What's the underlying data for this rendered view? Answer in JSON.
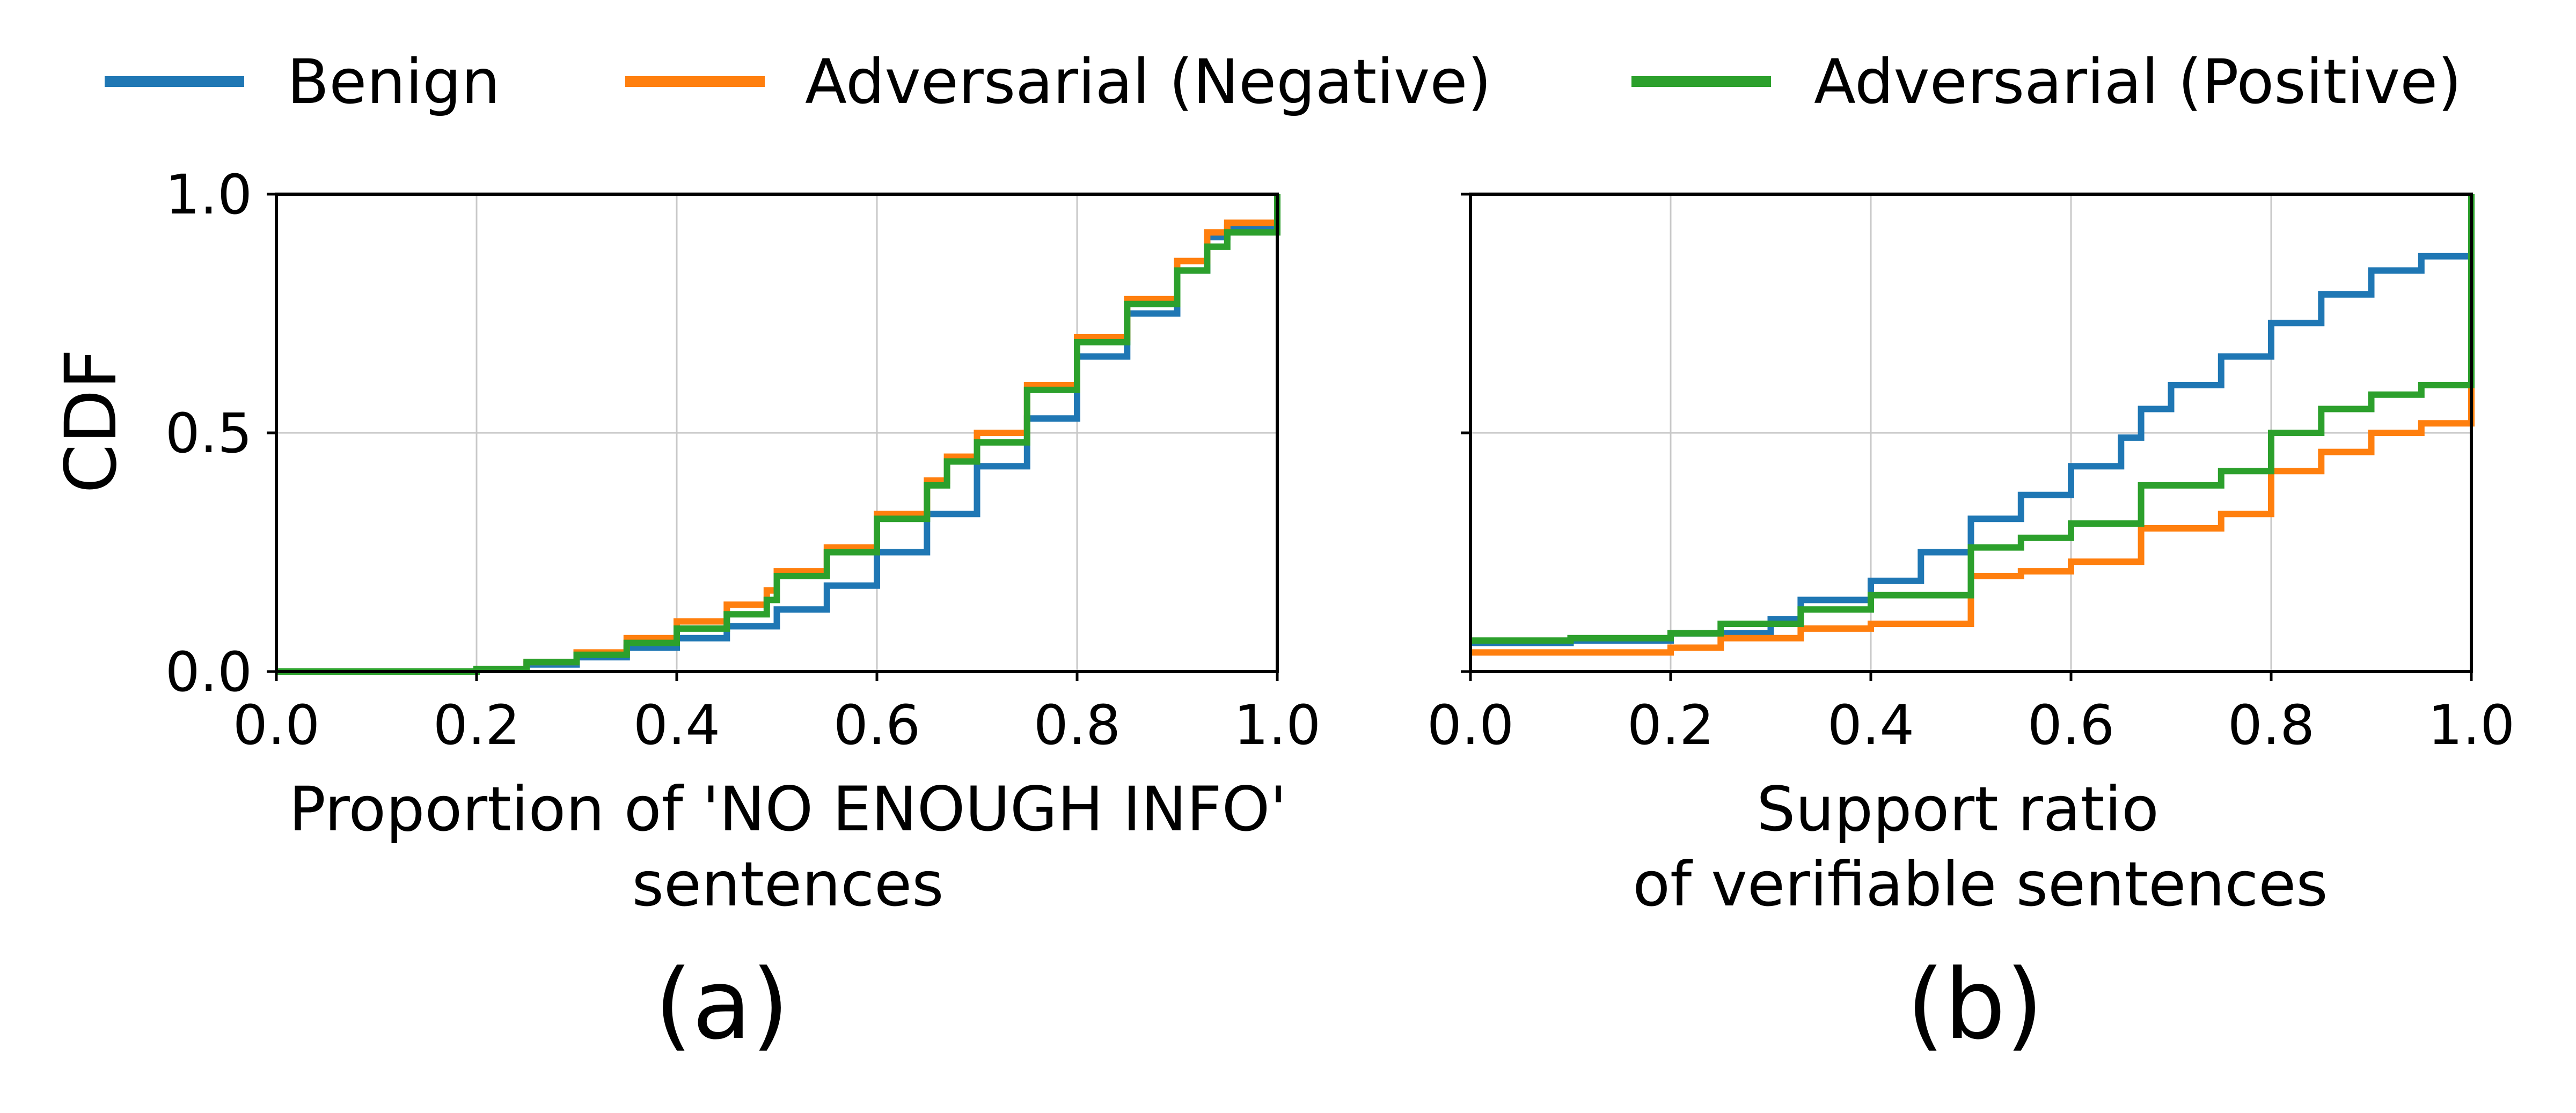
{
  "legend": [
    {
      "label": "Benign",
      "color": "#1f77b4"
    },
    {
      "label": "Adversarial (Negative)",
      "color": "#ff7f0e"
    },
    {
      "label": "Adversarial (Positive)",
      "color": "#2ca02c"
    }
  ],
  "ylabel": "CDF",
  "chart_data": [
    {
      "type": "line",
      "panel_label": "(a)",
      "xlabel_lines": [
        "Proportion of 'NO ENOUGH INFO'",
        "sentences"
      ],
      "xlim": [
        0.0,
        1.0
      ],
      "ylim": [
        0.0,
        1.0
      ],
      "xticks": [
        "0.0",
        "0.2",
        "0.4",
        "0.6",
        "0.8",
        "1.0"
      ],
      "yticks": [
        "0.0",
        "0.5",
        "1.0"
      ],
      "grid": true,
      "series": [
        {
          "name": "Benign",
          "color": "#1f77b4",
          "step": true,
          "x": [
            0.0,
            0.2,
            0.25,
            0.3,
            0.35,
            0.4,
            0.45,
            0.5,
            0.55,
            0.6,
            0.65,
            0.7,
            0.75,
            0.8,
            0.85,
            0.9,
            0.93,
            0.95,
            1.0,
            1.0
          ],
          "y": [
            0.0,
            0.005,
            0.015,
            0.03,
            0.05,
            0.07,
            0.095,
            0.13,
            0.18,
            0.25,
            0.33,
            0.43,
            0.53,
            0.66,
            0.75,
            0.84,
            0.91,
            0.93,
            0.93,
            1.0
          ]
        },
        {
          "name": "Adversarial (Negative)",
          "color": "#ff7f0e",
          "step": true,
          "x": [
            0.0,
            0.2,
            0.25,
            0.3,
            0.35,
            0.4,
            0.45,
            0.49,
            0.5,
            0.55,
            0.6,
            0.65,
            0.67,
            0.7,
            0.75,
            0.8,
            0.85,
            0.9,
            0.93,
            0.95,
            1.0,
            1.0
          ],
          "y": [
            0.0,
            0.005,
            0.02,
            0.04,
            0.07,
            0.105,
            0.14,
            0.17,
            0.21,
            0.26,
            0.33,
            0.4,
            0.45,
            0.5,
            0.6,
            0.7,
            0.78,
            0.86,
            0.92,
            0.94,
            0.94,
            1.0
          ]
        },
        {
          "name": "Adversarial (Positive)",
          "color": "#2ca02c",
          "step": true,
          "x": [
            0.0,
            0.2,
            0.25,
            0.3,
            0.35,
            0.4,
            0.45,
            0.49,
            0.5,
            0.55,
            0.6,
            0.65,
            0.67,
            0.7,
            0.75,
            0.8,
            0.85,
            0.9,
            0.93,
            0.95,
            1.0,
            1.0
          ],
          "y": [
            0.0,
            0.005,
            0.02,
            0.035,
            0.06,
            0.09,
            0.12,
            0.15,
            0.2,
            0.25,
            0.32,
            0.39,
            0.44,
            0.48,
            0.59,
            0.69,
            0.77,
            0.84,
            0.89,
            0.92,
            0.92,
            1.0
          ]
        }
      ]
    },
    {
      "type": "line",
      "panel_label": "(b)",
      "xlabel_lines": [
        "Support ratio",
        "of verifiable sentences"
      ],
      "xlim": [
        0.0,
        1.0
      ],
      "ylim": [
        0.0,
        1.0
      ],
      "xticks": [
        "0.0",
        "0.2",
        "0.4",
        "0.6",
        "0.8",
        "1.0"
      ],
      "yticks": [
        "",
        "",
        ""
      ],
      "grid": true,
      "series": [
        {
          "name": "Benign",
          "color": "#1f77b4",
          "step": true,
          "x": [
            0.0,
            0.1,
            0.2,
            0.3,
            0.33,
            0.4,
            0.45,
            0.5,
            0.55,
            0.6,
            0.65,
            0.67,
            0.7,
            0.75,
            0.8,
            0.85,
            0.9,
            0.95,
            1.0,
            1.0
          ],
          "y": [
            0.06,
            0.065,
            0.08,
            0.11,
            0.15,
            0.19,
            0.25,
            0.32,
            0.37,
            0.43,
            0.49,
            0.55,
            0.6,
            0.66,
            0.73,
            0.79,
            0.84,
            0.87,
            0.87,
            1.0
          ]
        },
        {
          "name": "Adversarial (Negative)",
          "color": "#ff7f0e",
          "step": true,
          "x": [
            0.0,
            0.1,
            0.2,
            0.25,
            0.33,
            0.4,
            0.5,
            0.55,
            0.6,
            0.67,
            0.75,
            0.8,
            0.85,
            0.9,
            0.95,
            1.0,
            1.0
          ],
          "y": [
            0.04,
            0.04,
            0.05,
            0.07,
            0.09,
            0.1,
            0.2,
            0.21,
            0.23,
            0.3,
            0.33,
            0.42,
            0.46,
            0.5,
            0.52,
            0.52,
            1.0
          ]
        },
        {
          "name": "Adversarial (Positive)",
          "color": "#2ca02c",
          "step": true,
          "x": [
            0.0,
            0.1,
            0.2,
            0.25,
            0.33,
            0.4,
            0.5,
            0.55,
            0.6,
            0.67,
            0.75,
            0.8,
            0.85,
            0.9,
            0.95,
            1.0,
            1.0
          ],
          "y": [
            0.065,
            0.07,
            0.08,
            0.1,
            0.13,
            0.16,
            0.26,
            0.28,
            0.31,
            0.39,
            0.42,
            0.5,
            0.55,
            0.58,
            0.6,
            0.6,
            1.0
          ]
        }
      ]
    }
  ]
}
